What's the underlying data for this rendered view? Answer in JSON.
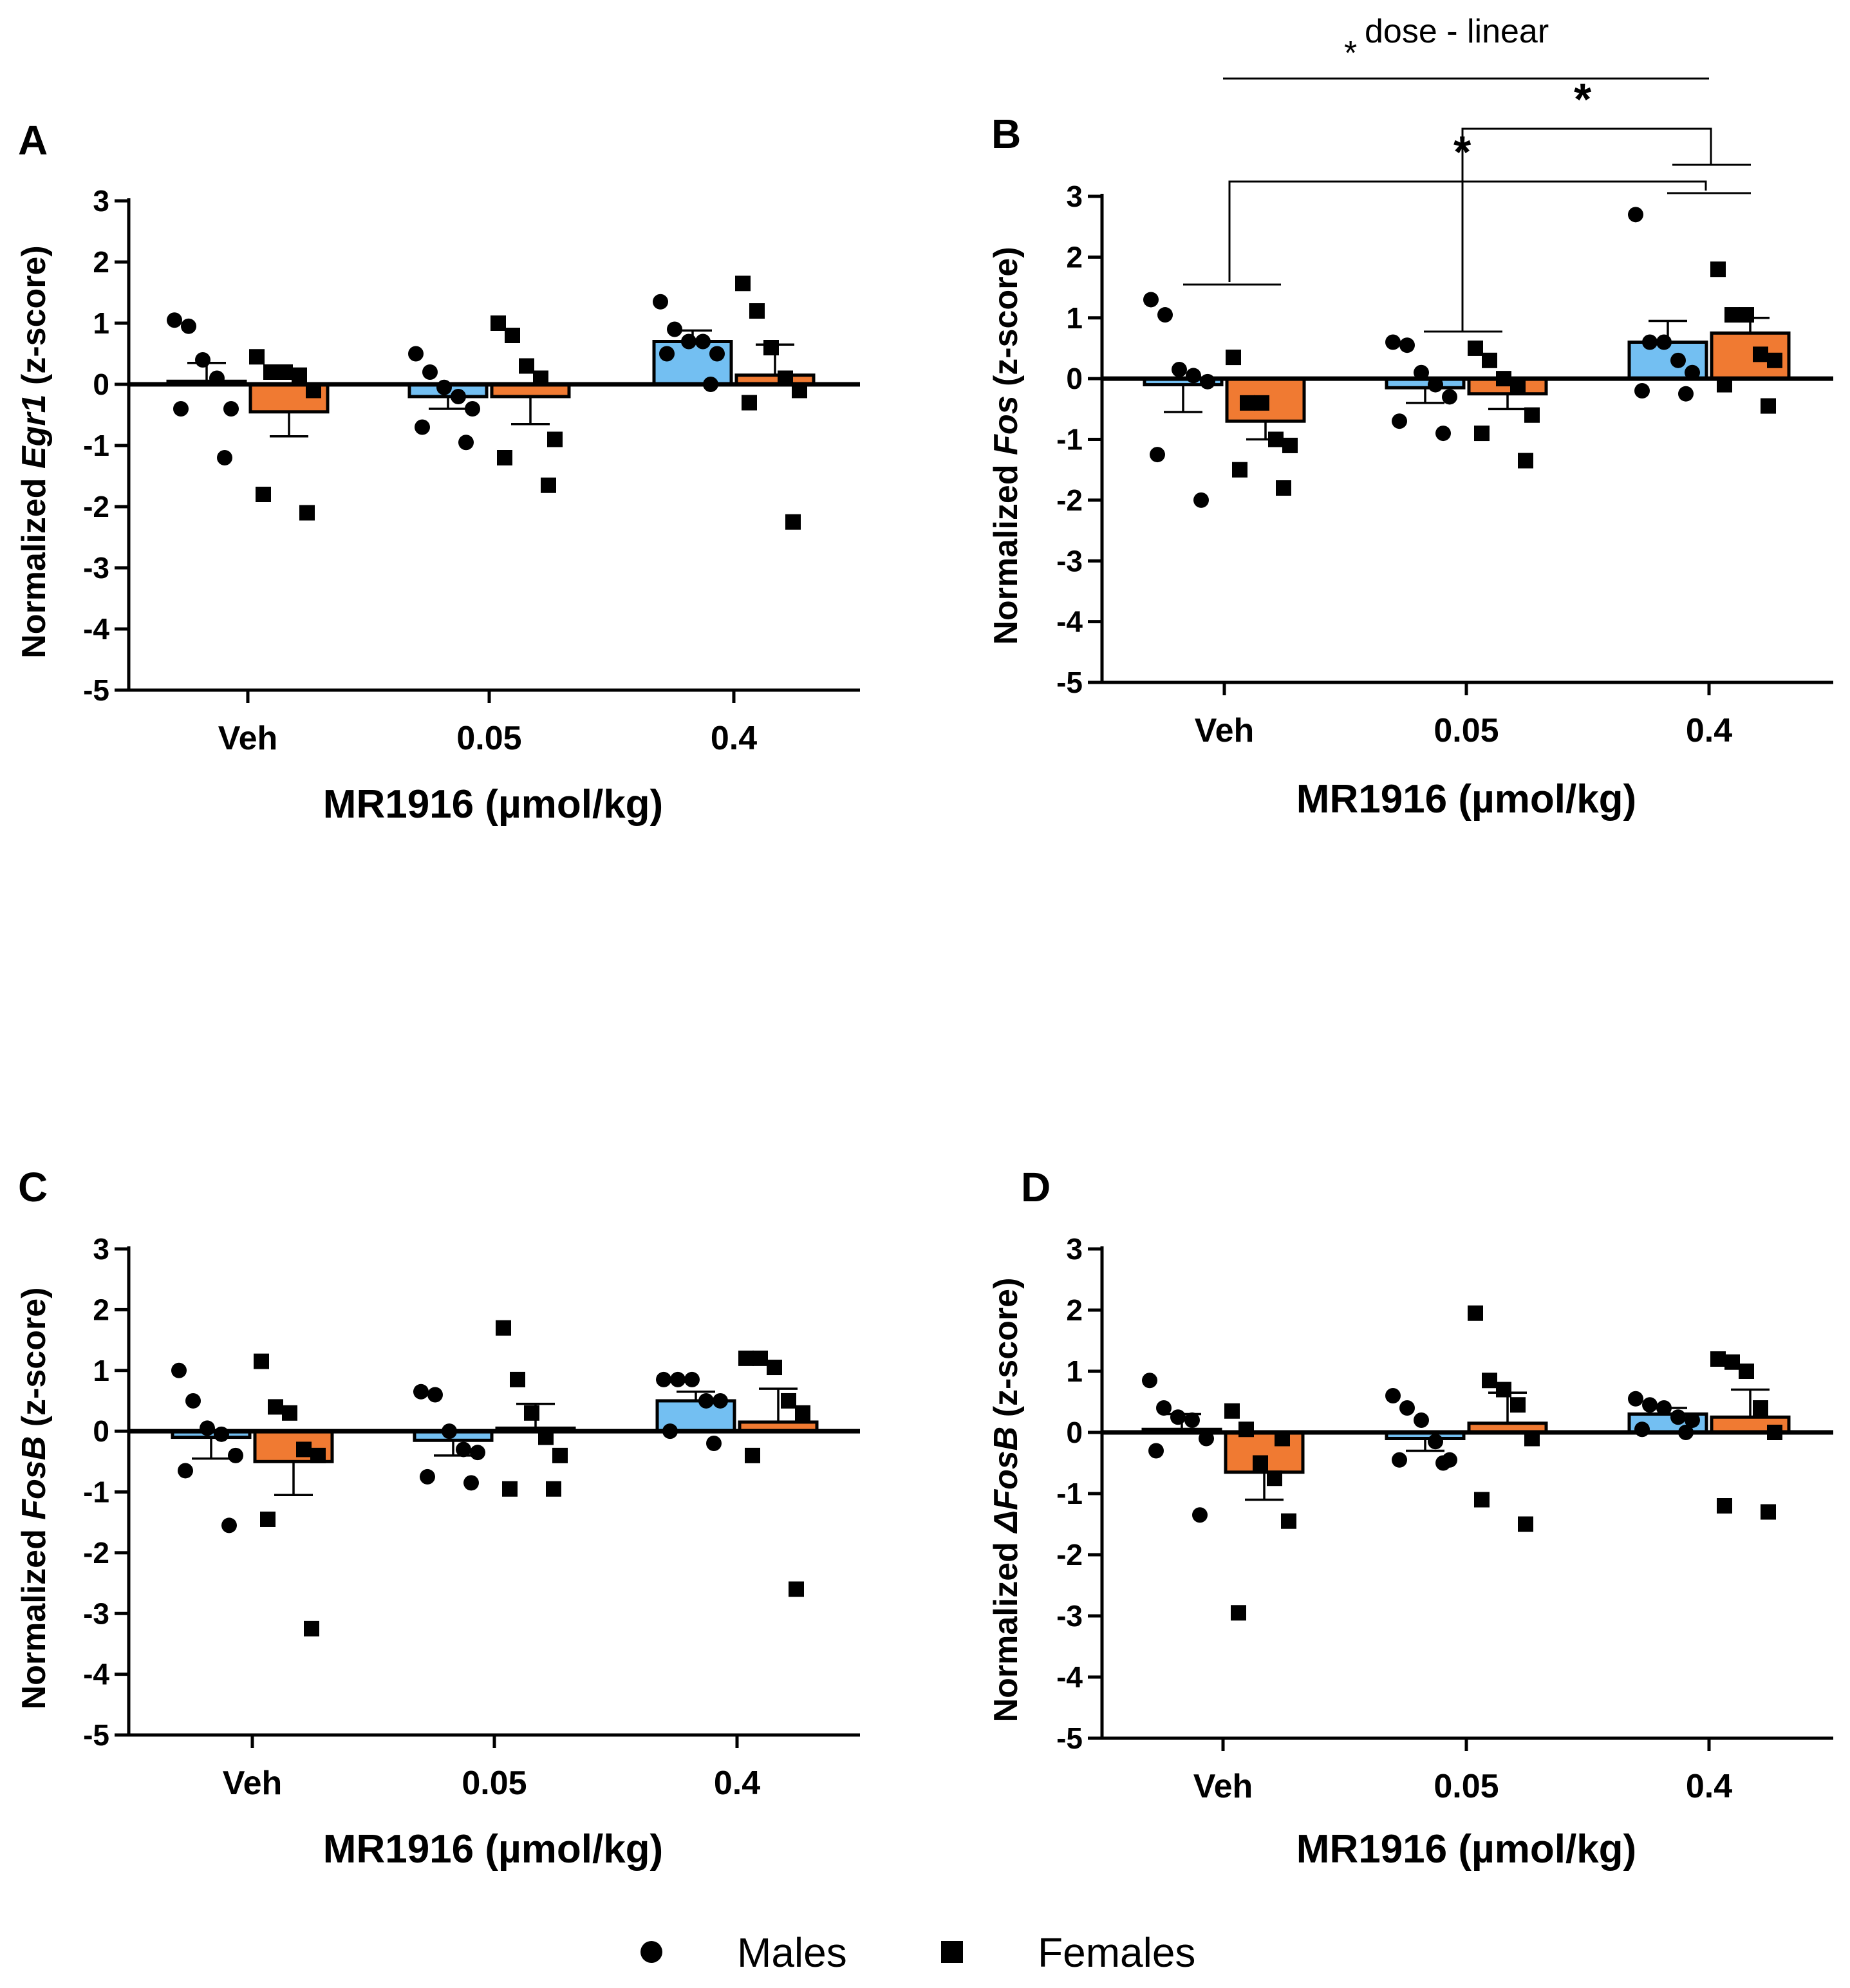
{
  "colors": {
    "males": "#73bff2",
    "females": "#f07a32"
  },
  "legend": {
    "males": "Males",
    "females": "Females"
  },
  "chart_data": [
    {
      "panel": "A",
      "type": "bar",
      "ylabel_prefix": "Normalized ",
      "gene": "Egr1",
      "ylabel_suffix": " (z-score)",
      "xlabel": "MR1916 (µmol/kg)",
      "categories": [
        "Veh",
        "0.05",
        "0.4"
      ],
      "ylim": [
        -5,
        3
      ],
      "yticks": [
        "3",
        "2",
        "1",
        "0",
        "-1",
        "-2",
        "-3",
        "-4",
        "-5"
      ],
      "series": [
        {
          "name": "Males",
          "means": [
            0.05,
            -0.2,
            0.7
          ],
          "sem": [
            0.3,
            0.2,
            0.18
          ],
          "points": [
            [
              1.05,
              0.95,
              0.4,
              0.1,
              -0.4,
              -0.4,
              -1.2
            ],
            [
              0.5,
              0.2,
              -0.05,
              -0.2,
              -0.4,
              -0.7,
              -0.95
            ],
            [
              1.35,
              0.9,
              0.7,
              0.7,
              0.5,
              0.5,
              0.0
            ]
          ]
        },
        {
          "name": "Females",
          "means": [
            -0.45,
            -0.2,
            0.15
          ],
          "sem": [
            0.4,
            0.45,
            0.5
          ],
          "points": [
            [
              0.45,
              0.2,
              0.2,
              0.15,
              -0.1,
              -1.8,
              -2.1
            ],
            [
              1.0,
              0.8,
              0.3,
              0.1,
              -0.9,
              -1.2,
              -1.65
            ],
            [
              1.65,
              1.2,
              0.6,
              0.1,
              -0.1,
              -0.3,
              -2.25
            ]
          ]
        }
      ]
    },
    {
      "panel": "B",
      "type": "bar",
      "ylabel_prefix": "Normalized ",
      "gene": "Fos",
      "ylabel_suffix": " (z-score)",
      "xlabel": "MR1916 (µmol/kg)",
      "categories": [
        "Veh",
        "0.05",
        "0.4"
      ],
      "ylim": [
        -5,
        3
      ],
      "yticks": [
        "3",
        "2",
        "1",
        "0",
        "-1",
        "-2",
        "-3",
        "-4",
        "-5"
      ],
      "series": [
        {
          "name": "Males",
          "means": [
            -0.1,
            -0.15,
            0.6
          ],
          "sem": [
            0.45,
            0.25,
            0.35
          ],
          "points": [
            [
              1.3,
              1.05,
              0.15,
              0.05,
              -0.05,
              -1.25,
              -2.0
            ],
            [
              0.6,
              0.55,
              0.1,
              -0.1,
              -0.3,
              -0.7,
              -0.9
            ],
            [
              2.7,
              0.6,
              0.6,
              0.3,
              0.1,
              -0.2,
              -0.25
            ]
          ]
        },
        {
          "name": "Females",
          "means": [
            -0.7,
            -0.25,
            0.75
          ],
          "sem": [
            0.3,
            0.25,
            0.25
          ],
          "points": [
            [
              0.35,
              -0.4,
              -0.4,
              -1.0,
              -1.1,
              -1.5,
              -1.8
            ],
            [
              0.5,
              0.3,
              0.0,
              -0.1,
              -0.6,
              -0.9,
              -1.35
            ],
            [
              1.8,
              1.05,
              1.05,
              0.4,
              0.3,
              -0.1,
              -0.45
            ]
          ]
        }
      ],
      "annotations": {
        "dose_linear": "dose - linear",
        "star": "*"
      }
    },
    {
      "panel": "C",
      "type": "bar",
      "ylabel_prefix": "Normalized ",
      "gene": "FosB",
      "ylabel_suffix": " (z-score)",
      "xlabel": "MR1916 (µmol/kg)",
      "categories": [
        "Veh",
        "0.05",
        "0.4"
      ],
      "ylim": [
        -5,
        3
      ],
      "yticks": [
        "3",
        "2",
        "1",
        "0",
        "-1",
        "-2",
        "-3",
        "-4",
        "-5"
      ],
      "series": [
        {
          "name": "Males",
          "means": [
            -0.1,
            -0.15,
            0.5
          ],
          "sem": [
            0.35,
            0.25,
            0.15
          ],
          "points": [
            [
              1.0,
              0.5,
              0.05,
              -0.05,
              -0.4,
              -0.65,
              -1.55
            ],
            [
              0.65,
              0.6,
              0.0,
              -0.3,
              -0.35,
              -0.75,
              -0.85
            ],
            [
              0.85,
              0.85,
              0.85,
              0.5,
              0.5,
              0.0,
              -0.2
            ]
          ]
        },
        {
          "name": "Females",
          "means": [
            -0.5,
            0.05,
            0.15
          ],
          "sem": [
            0.55,
            0.4,
            0.55
          ],
          "points": [
            [
              1.15,
              0.4,
              0.3,
              -0.3,
              -0.4,
              -1.45,
              -3.25
            ],
            [
              1.7,
              0.85,
              0.3,
              -0.1,
              -0.4,
              -0.95,
              -0.95
            ],
            [
              1.2,
              1.2,
              1.05,
              0.5,
              0.3,
              -0.4,
              -2.6
            ]
          ]
        }
      ]
    },
    {
      "panel": "D",
      "type": "bar",
      "ylabel_prefix": "Normalized ",
      "gene": "ΔFosB",
      "ylabel_suffix": " (z-score)",
      "xlabel": "MR1916 (µmol/kg)",
      "categories": [
        "Veh",
        "0.05",
        "0.4"
      ],
      "ylim": [
        -5,
        3
      ],
      "yticks": [
        "3",
        "2",
        "1",
        "0",
        "-1",
        "-2",
        "-3",
        "-4",
        "-5"
      ],
      "series": [
        {
          "name": "Males",
          "means": [
            0.05,
            -0.1,
            0.3
          ],
          "sem": [
            0.25,
            0.2,
            0.1
          ],
          "points": [
            [
              0.85,
              0.4,
              0.25,
              0.2,
              -0.1,
              -0.3,
              -1.35
            ],
            [
              0.6,
              0.4,
              0.2,
              -0.15,
              -0.45,
              -0.45,
              -0.5
            ],
            [
              0.55,
              0.45,
              0.4,
              0.25,
              0.2,
              0.05,
              0.0
            ]
          ]
        },
        {
          "name": "Females",
          "means": [
            -0.65,
            0.15,
            0.25
          ],
          "sem": [
            0.45,
            0.5,
            0.45
          ],
          "points": [
            [
              0.35,
              0.05,
              -0.5,
              -0.75,
              -1.45,
              -2.95,
              -0.1
            ],
            [
              1.95,
              0.85,
              0.7,
              0.45,
              -0.1,
              -1.1,
              -1.5
            ],
            [
              1.2,
              1.15,
              1.0,
              0.4,
              0.0,
              -1.2,
              -1.3
            ]
          ]
        }
      ]
    }
  ]
}
